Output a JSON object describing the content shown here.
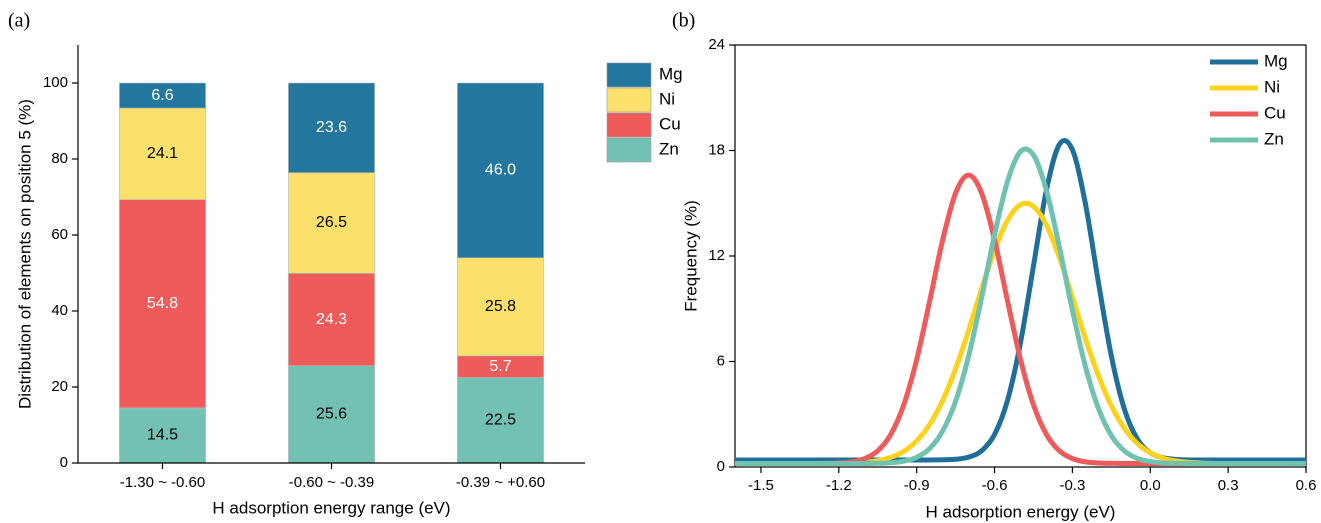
{
  "chart_data": [
    {
      "type": "bar",
      "stacked": true,
      "panel_label": "(a)",
      "x_label": "H adsorption energy range (eV)",
      "y_label": "Distribution of elements on position 5 (%)",
      "categories": [
        "-1.30 ~ -0.60",
        "-0.60 ~ -0.39",
        "-0.39 ~ +0.60"
      ],
      "series": [
        {
          "name": "Mg",
          "color": "#23779f",
          "values": [
            6.6,
            23.6,
            46.0
          ],
          "value_labels": [
            "6.6",
            "23.6",
            "46.0"
          ]
        },
        {
          "name": "Ni",
          "color": "#fbe06b",
          "values": [
            24.1,
            26.5,
            25.8
          ],
          "value_labels": [
            "24.1",
            "26.5",
            "25.8"
          ]
        },
        {
          "name": "Cu",
          "color": "#ef5a5a",
          "values": [
            54.8,
            24.3,
            5.7
          ],
          "value_labels": [
            "54.8",
            "24.3",
            "5.7"
          ]
        },
        {
          "name": "Zn",
          "color": "#72c1b2",
          "values": [
            14.5,
            25.6,
            22.5
          ],
          "value_labels": [
            "14.5",
            "25.6",
            "22.5"
          ]
        }
      ],
      "ylim": [
        0,
        110
      ],
      "yticks": [
        0,
        20,
        40,
        60,
        80,
        100
      ],
      "legend": "right"
    },
    {
      "type": "line",
      "panel_label": "(b)",
      "x_label": "H adsorption energy (eV)",
      "y_label": "Frequency (%)",
      "x": [
        -1.6,
        -1.55,
        -1.5,
        -1.45,
        -1.4,
        -1.35,
        -1.3,
        -1.25,
        -1.2,
        -1.15,
        -1.1,
        -1.05,
        -1.0,
        -0.95,
        -0.9,
        -0.85,
        -0.8,
        -0.75,
        -0.7,
        -0.65,
        -0.6,
        -0.55,
        -0.5,
        -0.45,
        -0.4,
        -0.35,
        -0.3,
        -0.25,
        -0.2,
        -0.15,
        -0.1,
        -0.05,
        0,
        0.05,
        0.1,
        0.15,
        0.2,
        0.25,
        0.3,
        0.35,
        0.4,
        0.45,
        0.5,
        0.55,
        0.6
      ],
      "series": [
        {
          "name": "Mg",
          "color": "#1f6f9a",
          "values": [
            0.4,
            0.4,
            0.4,
            0.4,
            0.4,
            0.4,
            0.4,
            0.4,
            0.4,
            0.4,
            0.4,
            0.4,
            0.4,
            0.4,
            0.4,
            0.4,
            0.41,
            0.44,
            0.56,
            0.92,
            1.85,
            3.79,
            7.07,
            11.44,
            15.76,
            18.35,
            18.04,
            14.98,
            10.52,
            6.31,
            3.3,
            1.6,
            0.81,
            0.52,
            0.43,
            0.4,
            0.4,
            0.4,
            0.4,
            0.4,
            0.4,
            0.4,
            0.4,
            0.4,
            0.4
          ]
        },
        {
          "name": "Ni",
          "color": "#fdd21d",
          "values": [
            0.2,
            0.2,
            0.2,
            0.2,
            0.2,
            0.2,
            0.2,
            0.2,
            0.2,
            0.23,
            0.27,
            0.36,
            0.55,
            0.89,
            1.49,
            2.42,
            3.78,
            5.59,
            7.77,
            10.12,
            12.32,
            14.03,
            14.92,
            14.82,
            13.75,
            11.91,
            9.65,
            7.31,
            5.2,
            3.48,
            2.2,
            1.34,
            0.81,
            0.5,
            0.34,
            0.26,
            0.22,
            0.2,
            0.2,
            0.2,
            0.2,
            0.2,
            0.2,
            0.2,
            0.2
          ]
        },
        {
          "name": "Cu",
          "color": "#ef5a5a",
          "values": [
            0.2,
            0.2,
            0.2,
            0.2,
            0.2,
            0.2,
            0.2,
            0.21,
            0.23,
            0.29,
            0.48,
            0.92,
            1.85,
            3.53,
            6.11,
            9.44,
            12.91,
            15.58,
            16.6,
            15.58,
            12.91,
            9.44,
            6.11,
            3.53,
            1.85,
            0.92,
            0.48,
            0.29,
            0.23,
            0.21,
            0.2,
            0.2,
            0.2,
            0.2,
            0.2,
            0.2,
            0.2,
            0.2,
            0.2,
            0.2,
            0.2,
            0.2,
            0.2,
            0.2,
            0.2
          ]
        },
        {
          "name": "Zn",
          "color": "#6fc1b0",
          "values": [
            0.2,
            0.2,
            0.2,
            0.2,
            0.2,
            0.2,
            0.2,
            0.2,
            0.2,
            0.2,
            0.2,
            0.21,
            0.24,
            0.33,
            0.55,
            1.05,
            2.04,
            3.74,
            6.3,
            9.62,
            13.2,
            16.25,
            17.94,
            17.74,
            15.72,
            12.49,
            8.91,
            5.72,
            3.34,
            1.79,
            0.92,
            0.49,
            0.31,
            0.23,
            0.21,
            0.2,
            0.2,
            0.2,
            0.2,
            0.2,
            0.2,
            0.2,
            0.2,
            0.2,
            0.2
          ]
        }
      ],
      "xlim": [
        -1.6,
        0.6
      ],
      "xticks": [
        -1.5,
        -1.2,
        -0.9,
        -0.6,
        -0.3,
        {
          "value": 0,
          "label": "0.0"
        },
        0.3,
        0.6
      ],
      "ylim": [
        0,
        24
      ],
      "yticks": [
        0,
        6,
        12,
        18,
        24
      ],
      "legend": "upper right"
    }
  ]
}
